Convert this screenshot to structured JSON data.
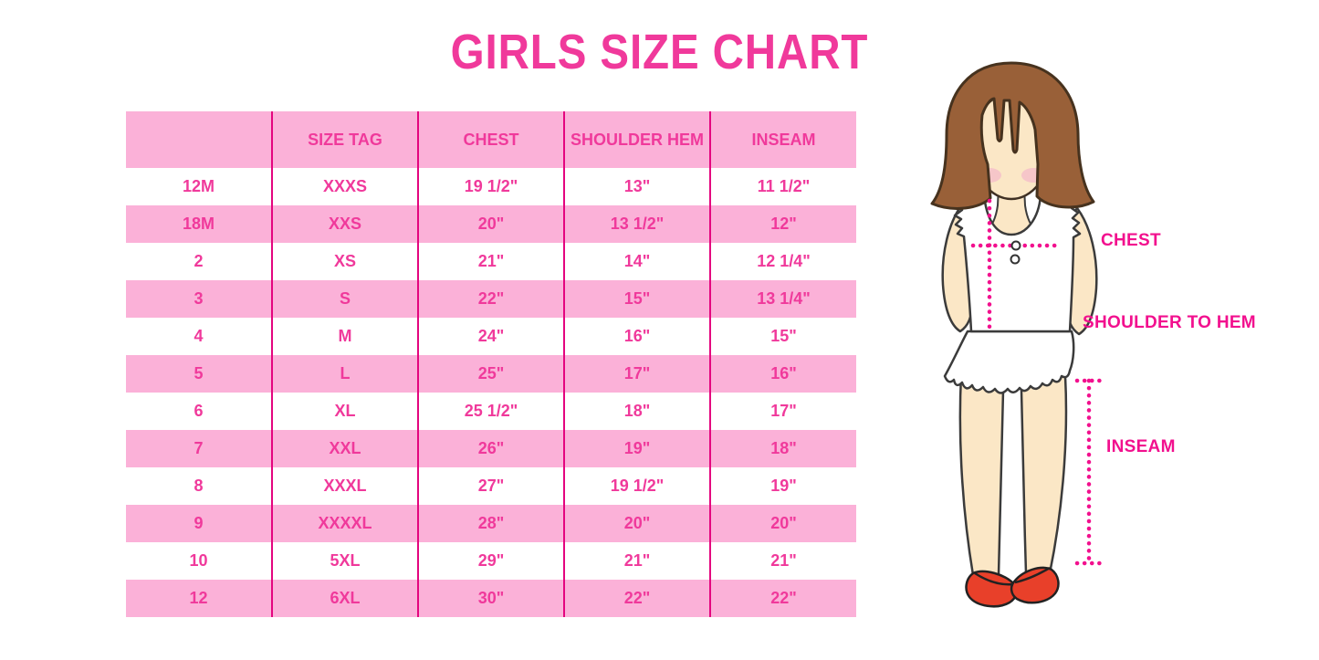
{
  "title": "GIRLS SIZE CHART",
  "colors": {
    "accent_text": "#F0399B",
    "row_pink": "#FBB1D8",
    "column_line": "#E4057F",
    "label_pink": "#F2108E",
    "hair_brown": "#996038",
    "skin": "#FBE7C6",
    "blush": "#F5C0C9",
    "shoe_red": "#E8402A",
    "background": "#FFFFFF"
  },
  "table": {
    "headers": [
      "",
      "SIZE TAG",
      "CHEST",
      "SHOULDER HEM",
      "INSEAM"
    ],
    "rows": [
      [
        "12M",
        "XXXS",
        "19 1/2\"",
        "13\"",
        "11 1/2\""
      ],
      [
        "18M",
        "XXS",
        "20\"",
        "13 1/2\"",
        "12\""
      ],
      [
        "2",
        "XS",
        "21\"",
        "14\"",
        "12 1/4\""
      ],
      [
        "3",
        "S",
        "22\"",
        "15\"",
        "13 1/4\""
      ],
      [
        "4",
        "M",
        "24\"",
        "16\"",
        "15\""
      ],
      [
        "5",
        "L",
        "25\"",
        "17\"",
        "16\""
      ],
      [
        "6",
        "XL",
        "25 1/2\"",
        "18\"",
        "17\""
      ],
      [
        "7",
        "XXL",
        "26\"",
        "19\"",
        "18\""
      ],
      [
        "8",
        "XXXL",
        "27\"",
        "19 1/2\"",
        "19\""
      ],
      [
        "9",
        "XXXXL",
        "28\"",
        "20\"",
        "20\""
      ],
      [
        "10",
        "5XL",
        "29\"",
        "21\"",
        "21\""
      ],
      [
        "12",
        "6XL",
        "30\"",
        "22\"",
        "22\""
      ]
    ]
  },
  "diagram": {
    "chest_label": "CHEST",
    "shoulder_to_hem_label": "SHOULDER TO HEM",
    "inseam_label": "INSEAM"
  },
  "chart_data": {
    "type": "table",
    "title": "GIRLS SIZE CHART",
    "columns": [
      "",
      "SIZE TAG",
      "CHEST",
      "SHOULDER HEM",
      "INSEAM"
    ],
    "rows": [
      [
        "12M",
        "XXXS",
        "19 1/2\"",
        "13\"",
        "11 1/2\""
      ],
      [
        "18M",
        "XXS",
        "20\"",
        "13 1/2\"",
        "12\""
      ],
      [
        "2",
        "XS",
        "21\"",
        "14\"",
        "12 1/4\""
      ],
      [
        "3",
        "S",
        "22\"",
        "15\"",
        "13 1/4\""
      ],
      [
        "4",
        "M",
        "24\"",
        "16\"",
        "15\""
      ],
      [
        "5",
        "L",
        "25\"",
        "17\"",
        "16\""
      ],
      [
        "6",
        "XL",
        "25 1/2\"",
        "18\"",
        "17\""
      ],
      [
        "7",
        "XXL",
        "26\"",
        "19\"",
        "18\""
      ],
      [
        "8",
        "XXXL",
        "27\"",
        "19 1/2\"",
        "19\""
      ],
      [
        "9",
        "XXXXL",
        "28\"",
        "20\"",
        "20\""
      ],
      [
        "10",
        "5XL",
        "29\"",
        "21\"",
        "21\""
      ],
      [
        "12",
        "6XL",
        "30\"",
        "22\"",
        "22\""
      ]
    ],
    "annotations": [
      "CHEST",
      "SHOULDER TO HEM",
      "INSEAM"
    ],
    "legend_position": "none",
    "grid": "column-separators-only"
  }
}
